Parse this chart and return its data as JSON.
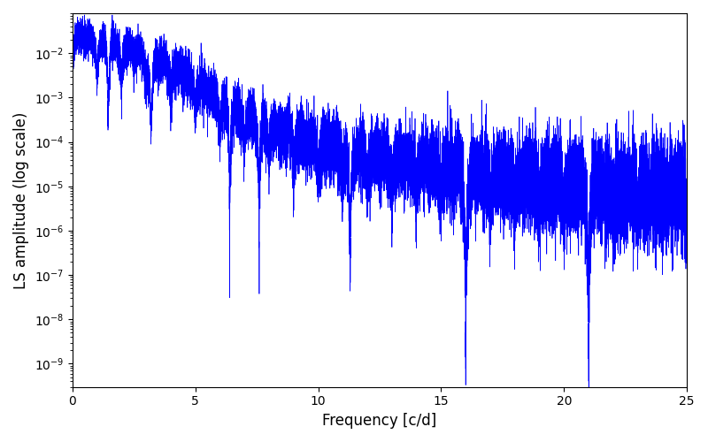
{
  "title": "",
  "xlabel": "Frequency [c/d]",
  "ylabel": "LS amplitude (log scale)",
  "xlim": [
    0,
    25
  ],
  "ylim": [
    3e-10,
    0.08
  ],
  "line_color": "#0000ff",
  "line_width": 0.5,
  "background_color": "#ffffff",
  "yscale": "log",
  "figsize": [
    8.0,
    5.0
  ],
  "dpi": 100
}
